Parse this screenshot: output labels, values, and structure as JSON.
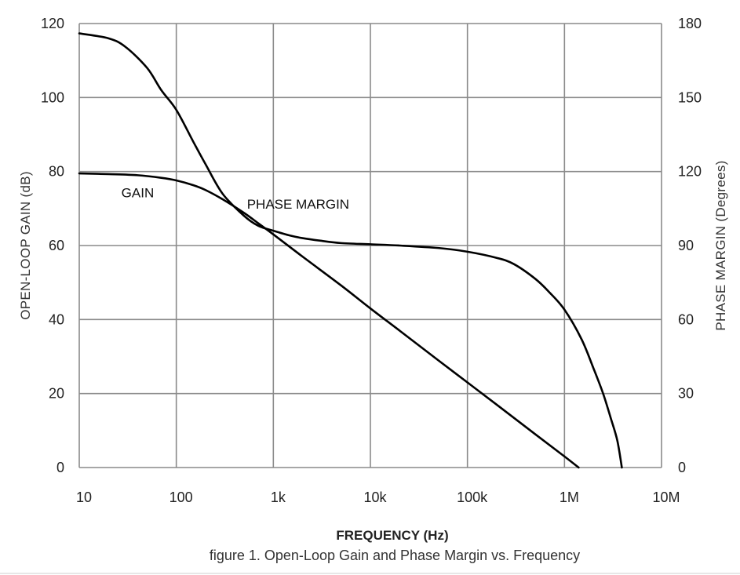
{
  "chart_data": {
    "type": "line",
    "title": "",
    "caption": "figure 1. Open-Loop Gain and Phase Margin vs. Frequency",
    "xlabel": "FREQUENCY (Hz)",
    "ylabel": "OPEN-LOOP GAIN (dB)",
    "y2label": "PHASE MARGIN (Degrees)",
    "xscale": "log",
    "xlim": [
      10,
      10000000
    ],
    "ylim": [
      0,
      120
    ],
    "y2lim": [
      0,
      180
    ],
    "grid": true,
    "legend": "none",
    "x_ticks": [
      {
        "value": 10,
        "label": "10"
      },
      {
        "value": 100,
        "label": "100"
      },
      {
        "value": 1000,
        "label": "1k"
      },
      {
        "value": 10000,
        "label": "10k"
      },
      {
        "value": 100000,
        "label": "100k"
      },
      {
        "value": 1000000,
        "label": "1M"
      },
      {
        "value": 10000000,
        "label": "10M"
      }
    ],
    "y_ticks": [
      0,
      20,
      40,
      60,
      80,
      100,
      120
    ],
    "y2_ticks": [
      0,
      30,
      60,
      90,
      120,
      150,
      180
    ],
    "series": [
      {
        "name": "GAIN",
        "axis": "left",
        "label_at": [
          40,
          73
        ],
        "x": [
          10,
          20,
          40,
          70,
          100,
          150,
          200,
          300,
          500,
          700,
          1000,
          2000,
          5000,
          10000,
          20000,
          50000,
          100000,
          200000,
          500000,
          1000000,
          1400000
        ],
        "y": [
          79.5,
          79.3,
          79.0,
          78.3,
          77.6,
          76.3,
          75.0,
          72.5,
          68.8,
          66.0,
          63.0,
          57.0,
          49.2,
          43.0,
          37.0,
          29.0,
          23.0,
          17.0,
          9.0,
          3.0,
          0.0
        ]
      },
      {
        "name": "PHASE MARGIN",
        "axis": "right",
        "label_at": [
          1800,
          105
        ],
        "x": [
          10,
          20,
          30,
          50,
          70,
          100,
          150,
          200,
          300,
          500,
          700,
          1000,
          1500,
          2000,
          3000,
          5000,
          10000,
          20000,
          50000,
          100000,
          200000,
          300000,
          500000,
          700000,
          1000000,
          1500000,
          2000000,
          2500000,
          3000000,
          3500000,
          3900000
        ],
        "y": [
          176.0,
          174.0,
          170.5,
          162.0,
          153.0,
          145.0,
          132.0,
          123.0,
          111.0,
          102.0,
          98.0,
          96.0,
          94.0,
          93.0,
          92.0,
          91.0,
          90.5,
          90.0,
          89.0,
          87.5,
          85.0,
          82.5,
          76.5,
          71.0,
          64.0,
          52.0,
          40.0,
          30.0,
          20.0,
          11.0,
          0.0
        ]
      }
    ]
  }
}
